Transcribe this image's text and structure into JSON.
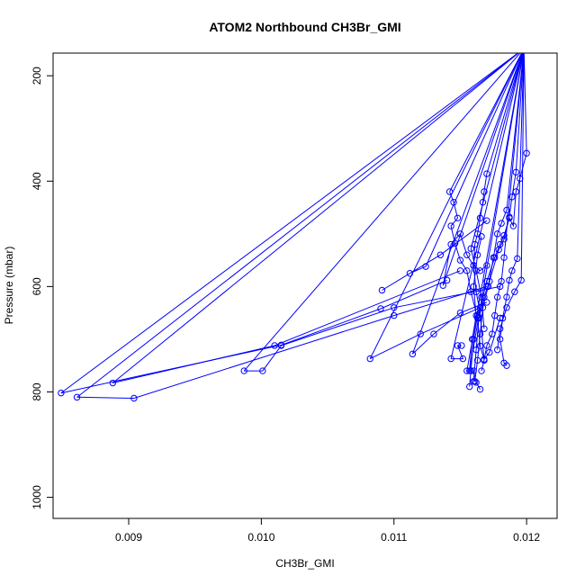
{
  "chart_data": {
    "type": "line",
    "title": "ATOM2 Northbound CH3Br_GMI",
    "xlabel": "CH3Br_GMI",
    "ylabel": "Pressure (mbar)",
    "xlim": [
      0.00843,
      0.01223
    ],
    "ylim": [
      1040,
      157
    ],
    "y_reversed": true,
    "grid": false,
    "legend": "none",
    "x_ticks": [
      "0.009",
      "0.010",
      "0.011",
      "0.012"
    ],
    "x_tick_values": [
      0.009,
      0.01,
      0.011,
      0.012
    ],
    "y_ticks": [
      "200",
      "400",
      "600",
      "800",
      "1000"
    ],
    "y_tick_values": [
      200,
      400,
      600,
      800,
      1000
    ],
    "series": [
      {
        "color": "#0000ff",
        "points": [
          [
            0.012,
            347
          ],
          [
            0.01195,
            395
          ],
          [
            0.01192,
            420
          ],
          [
            0.0119,
            485
          ],
          [
            0.01187,
            470
          ],
          [
            0.01183,
            503
          ],
          [
            0.0118,
            520
          ],
          [
            0.01176,
            545
          ],
          [
            0.0117,
            590
          ],
          [
            0.01166,
            630
          ],
          [
            0.01163,
            655
          ],
          [
            0.0116,
            700
          ],
          [
            0.01158,
            760
          ],
          [
            0.01157,
            790
          ]
        ]
      },
      {
        "color": "#0000ff",
        "points": [
          [
            0.01192,
            383
          ],
          [
            0.01189,
            430
          ],
          [
            0.01187,
            468
          ],
          [
            0.01183,
            510
          ],
          [
            0.01179,
            530
          ],
          [
            0.01172,
            590
          ],
          [
            0.01168,
            620
          ],
          [
            0.01164,
            660
          ],
          [
            0.01162,
            720
          ],
          [
            0.0116,
            780
          ]
        ]
      },
      {
        "color": "#0000ff",
        "points": [
          [
            0.01185,
            455
          ],
          [
            0.01181,
            480
          ],
          [
            0.01178,
            500
          ],
          [
            0.01175,
            545
          ],
          [
            0.01171,
            600
          ],
          [
            0.01167,
            640
          ],
          [
            0.01165,
            690
          ],
          [
            0.01163,
            740
          ],
          [
            0.01161,
            780
          ]
        ]
      },
      {
        "color": "#0000ff",
        "points": [
          [
            0.0117,
            386
          ],
          [
            0.01168,
            420
          ],
          [
            0.01167,
            440
          ],
          [
            0.01165,
            470
          ],
          [
            0.01163,
            500
          ],
          [
            0.01161,
            520
          ],
          [
            0.0116,
            560
          ],
          [
            0.01162,
            610
          ],
          [
            0.01165,
            650
          ],
          [
            0.01168,
            740
          ],
          [
            0.01166,
            760
          ]
        ]
      },
      {
        "color": "#0000ff",
        "points": [
          [
            0.01142,
            420
          ],
          [
            0.01145,
            440
          ],
          [
            0.01148,
            470
          ],
          [
            0.01143,
            485
          ],
          [
            0.01146,
            518
          ],
          [
            0.0115,
            550
          ],
          [
            0.01155,
            570
          ],
          [
            0.01158,
            610
          ],
          [
            0.01163,
            660
          ],
          [
            0.01165,
            713
          ],
          [
            0.01168,
            738
          ],
          [
            0.01172,
            725
          ],
          [
            0.0118,
            660
          ]
        ]
      },
      {
        "color": "#0000ff",
        "points": [
          [
            0.01137,
            598
          ],
          [
            0.01143,
            520
          ],
          [
            0.0115,
            500
          ],
          [
            0.01155,
            540
          ],
          [
            0.0116,
            560
          ],
          [
            0.01165,
            570
          ],
          [
            0.0117,
            560
          ]
        ]
      },
      {
        "color": "#0000ff",
        "points": [
          [
            0.01157,
            760
          ],
          [
            0.01159,
            700
          ],
          [
            0.01162,
            655
          ],
          [
            0.0116,
            600
          ],
          [
            0.01163,
            540
          ],
          [
            0.01166,
            505
          ]
        ]
      },
      {
        "color": "#0000ff",
        "points": [
          [
            0.01183,
            545
          ],
          [
            0.01181,
            590
          ],
          [
            0.01178,
            620
          ],
          [
            0.01176,
            655
          ],
          [
            0.01174,
            690
          ],
          [
            0.0117,
            712
          ],
          [
            0.01168,
            740
          ]
        ]
      },
      {
        "color": "#0000ff",
        "points": [
          [
            0.01193,
            547
          ],
          [
            0.01189,
            570
          ],
          [
            0.01187,
            588
          ],
          [
            0.01185,
            620
          ],
          [
            0.01182,
            660
          ],
          [
            0.0118,
            700
          ],
          [
            0.01183,
            745
          ],
          [
            0.01185,
            750
          ]
        ]
      },
      {
        "color": "#0000ff",
        "points": [
          [
            0.01196,
            588
          ],
          [
            0.01191,
            610
          ],
          [
            0.01185,
            640
          ],
          [
            0.0118,
            680
          ],
          [
            0.01178,
            720
          ]
        ]
      },
      {
        "color": "#0000ff",
        "points": [
          [
            0.01158,
            528
          ],
          [
            0.01162,
            570
          ],
          [
            0.01166,
            620
          ],
          [
            0.01168,
            680
          ]
        ]
      },
      {
        "color": "#0000ff",
        "points": [
          [
            0.01124,
            562
          ],
          [
            0.01112,
            575
          ],
          [
            0.01091,
            607
          ],
          [
            0.01135,
            540
          ],
          [
            0.0117,
            475
          ]
        ]
      },
      {
        "color": "#0000ff",
        "points": [
          [
            0.00849,
            802
          ],
          [
            0.01015,
            711
          ],
          [
            0.0109,
            642
          ],
          [
            0.0114,
            588
          ]
        ]
      },
      {
        "color": "#0000ff",
        "points": [
          [
            0.00861,
            810
          ],
          [
            0.00904,
            812
          ],
          [
            0.011,
            655
          ],
          [
            0.0117,
            600
          ]
        ]
      },
      {
        "color": "#0000ff",
        "points": [
          [
            0.00888,
            783
          ],
          [
            0.0101,
            712
          ],
          [
            0.0115,
            570
          ]
        ]
      },
      {
        "color": "#0000ff",
        "points": [
          [
            0.00987,
            760
          ],
          [
            0.01001,
            760
          ],
          [
            0.01015,
            712
          ],
          [
            0.011,
            640
          ],
          [
            0.0118,
            600
          ]
        ]
      },
      {
        "color": "#0000ff",
        "points": [
          [
            0.01082,
            737
          ],
          [
            0.0112,
            690
          ],
          [
            0.01165,
            640
          ]
        ]
      },
      {
        "color": "#0000ff",
        "points": [
          [
            0.01114,
            728
          ],
          [
            0.0113,
            690
          ],
          [
            0.0115,
            650
          ],
          [
            0.0117,
            630
          ]
        ]
      },
      {
        "color": "#0000ff",
        "points": [
          [
            0.01143,
            737
          ],
          [
            0.01152,
            737
          ],
          [
            0.01148,
            712
          ],
          [
            0.01151,
            712
          ]
        ]
      },
      {
        "color": "#0000ff",
        "points": [
          [
            0.01155,
            760
          ],
          [
            0.0116,
            760
          ],
          [
            0.01162,
            782
          ],
          [
            0.01165,
            795
          ]
        ]
      }
    ]
  }
}
